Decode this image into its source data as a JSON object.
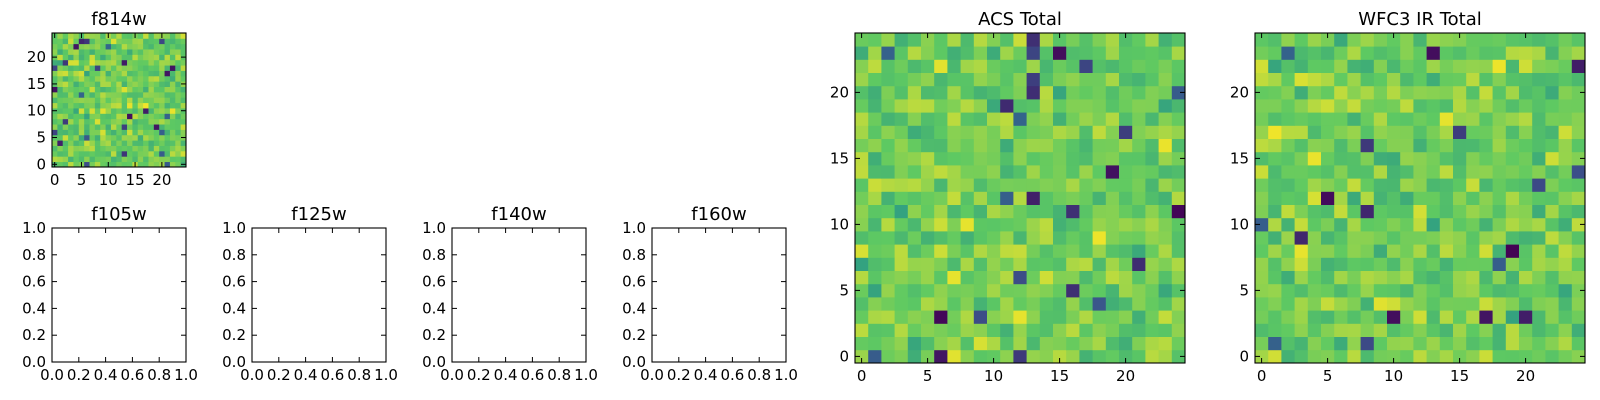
{
  "chart_data": [
    {
      "type": "heatmap",
      "title": "f814w",
      "grid_size": 25,
      "xlim": [
        -0.5,
        24.5
      ],
      "ylim": [
        -0.5,
        24.5
      ],
      "xticks": [
        0,
        5,
        10,
        15,
        20
      ],
      "yticks": [
        0,
        5,
        10,
        15,
        20
      ],
      "colormap": "viridis",
      "seed": 814
    },
    {
      "type": "heatmap",
      "title": "f105w",
      "empty": true,
      "xlim": [
        0,
        1
      ],
      "ylim": [
        0,
        1
      ],
      "xticks": [
        "0.0",
        "0.2",
        "0.4",
        "0.6",
        "0.8",
        "1.0"
      ],
      "yticks": [
        "0.0",
        "0.2",
        "0.4",
        "0.6",
        "0.8",
        "1.0"
      ]
    },
    {
      "type": "heatmap",
      "title": "f125w",
      "empty": true,
      "xlim": [
        0,
        1
      ],
      "ylim": [
        0,
        1
      ],
      "xticks": [
        "0.0",
        "0.2",
        "0.4",
        "0.6",
        "0.8",
        "1.0"
      ],
      "yticks": [
        "0.0",
        "0.2",
        "0.4",
        "0.6",
        "0.8",
        "1.0"
      ]
    },
    {
      "type": "heatmap",
      "title": "f140w",
      "empty": true,
      "xlim": [
        0,
        1
      ],
      "ylim": [
        0,
        1
      ],
      "xticks": [
        "0.0",
        "0.2",
        "0.4",
        "0.6",
        "0.8",
        "1.0"
      ],
      "yticks": [
        "0.0",
        "0.2",
        "0.4",
        "0.6",
        "0.8",
        "1.0"
      ]
    },
    {
      "type": "heatmap",
      "title": "f160w",
      "empty": true,
      "xlim": [
        0,
        1
      ],
      "ylim": [
        0,
        1
      ],
      "xticks": [
        "0.0",
        "0.2",
        "0.4",
        "0.6",
        "0.8",
        "1.0"
      ],
      "yticks": [
        "0.0",
        "0.2",
        "0.4",
        "0.6",
        "0.8",
        "1.0"
      ]
    },
    {
      "type": "heatmap",
      "title": "ACS Total",
      "grid_size": 25,
      "xlim": [
        -0.5,
        24.5
      ],
      "ylim": [
        -0.5,
        24.5
      ],
      "xticks": [
        0,
        5,
        10,
        15,
        20
      ],
      "yticks": [
        0,
        5,
        10,
        15,
        20
      ],
      "colormap": "viridis",
      "seed": 1701
    },
    {
      "type": "heatmap",
      "title": "WFC3 IR Total",
      "grid_size": 25,
      "xlim": [
        -0.5,
        24.5
      ],
      "ylim": [
        -0.5,
        24.5
      ],
      "xticks": [
        0,
        5,
        10,
        15,
        20
      ],
      "yticks": [
        0,
        5,
        10,
        15,
        20
      ],
      "colormap": "viridis",
      "seed": 3003
    }
  ]
}
